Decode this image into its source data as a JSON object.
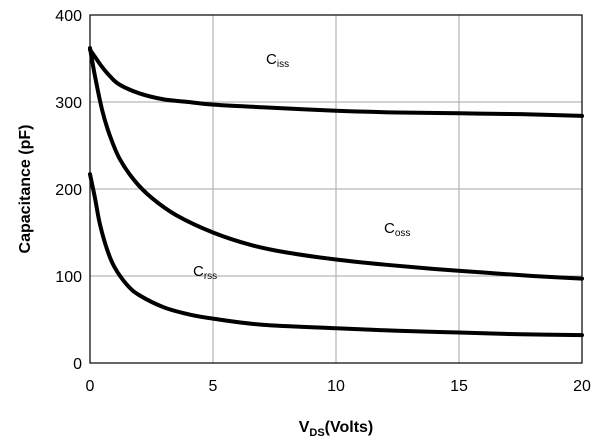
{
  "chart_data": {
    "type": "line",
    "xlabel_main": "V",
    "xlabel_sub": "DS",
    "xlabel_rest": "(Volts)",
    "ylabel": "Capacitance (pF)",
    "xlim": [
      0,
      20
    ],
    "ylim": [
      0,
      400
    ],
    "xticks": [
      0,
      5,
      10,
      15,
      20
    ],
    "yticks": [
      0,
      100,
      200,
      300,
      400
    ],
    "grid": true,
    "series": [
      {
        "name_main": "C",
        "name_sub": "iss",
        "x": [
          0,
          0.2,
          0.5,
          0.8,
          1.2,
          2,
          3,
          4,
          5,
          7,
          10,
          12.5,
          15,
          17.5,
          20
        ],
        "y": [
          360,
          352,
          340,
          330,
          320,
          310,
          303,
          300,
          297,
          294,
          290,
          288,
          287,
          286,
          284
        ]
      },
      {
        "name_main": "C",
        "name_sub": "oss",
        "x": [
          0,
          0.2,
          0.5,
          0.8,
          1.2,
          1.8,
          2.5,
          3.5,
          5,
          6.5,
          8,
          10,
          12,
          14,
          16,
          18,
          20
        ],
        "y": [
          362,
          330,
          290,
          262,
          235,
          210,
          190,
          170,
          150,
          136,
          127,
          119,
          113,
          108,
          104,
          100,
          97
        ]
      },
      {
        "name_main": "C",
        "name_sub": "rss",
        "x": [
          0,
          0.2,
          0.4,
          0.7,
          1,
          1.5,
          2,
          3,
          4,
          5,
          7,
          10,
          12.5,
          15,
          17.5,
          20
        ],
        "y": [
          217,
          190,
          160,
          130,
          110,
          90,
          78,
          64,
          56,
          51,
          44,
          40,
          37,
          35,
          33,
          32
        ]
      }
    ]
  }
}
